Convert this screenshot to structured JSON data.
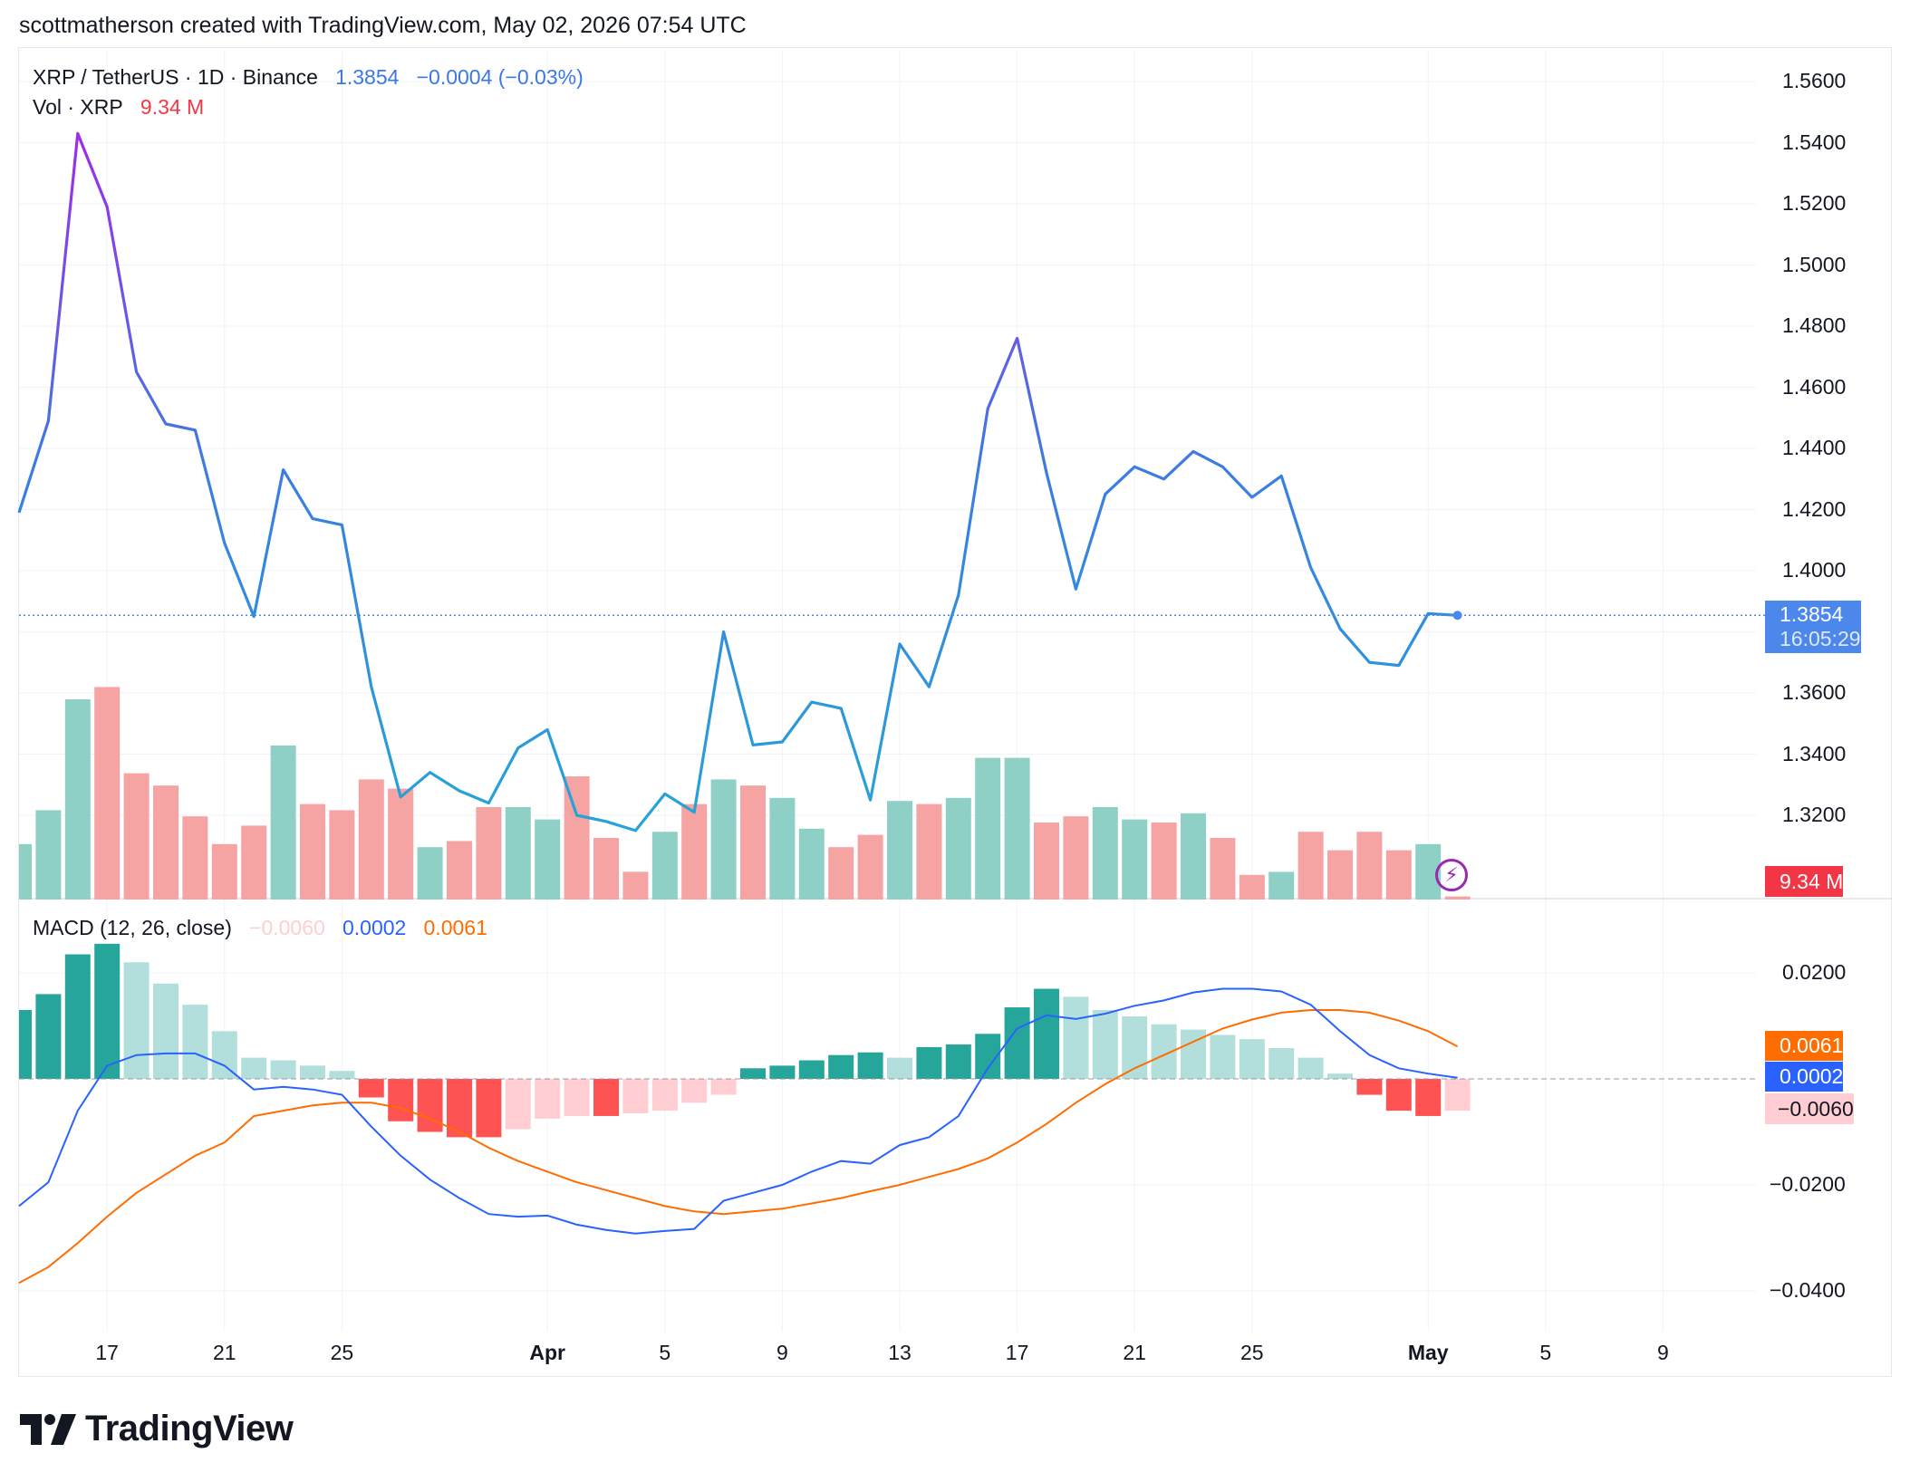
{
  "header": {
    "attribution": "scottmatherson created with TradingView.com, May 02, 2026 07:54 UTC"
  },
  "legend": {
    "symbol": "XRP / TetherUS · 1D · Binance",
    "last_price": "1.3854",
    "change": "−0.0004 (−0.03%)",
    "vol_label": "Vol · XRP",
    "vol_value": "9.34 M",
    "macd_label": "MACD (12, 26, close)",
    "macd_hist": "−0.0060",
    "macd_line": "0.0002",
    "macd_signal": "0.0061"
  },
  "badges": {
    "price": "1.3854",
    "countdown": "16:05:29",
    "volume": "9.34 M",
    "macd_signal": "0.0061",
    "macd_line": "0.0002",
    "macd_hist": "−0.0060"
  },
  "colors": {
    "up_volume": "#8fd0c6",
    "down_volume": "#f5a3a3",
    "macd_line": "#2962ff",
    "signal_line": "#ff6d00",
    "hist_up_strong": "#26a69a",
    "hist_up_weak": "#b2dfdb",
    "hist_down_strong": "#ff5252",
    "hist_down_weak": "#ffcdd2",
    "price_line_top": "#a22be8",
    "price_line_mid": "#3b7de0",
    "price_line_bottom": "#26a3d8"
  },
  "brand": "TradingView",
  "chart_data": {
    "type": "line",
    "price_axis": {
      "ticks": [
        "1.5600",
        "1.5400",
        "1.5200",
        "1.5000",
        "1.4800",
        "1.4600",
        "1.4400",
        "1.4200",
        "1.4000",
        "1.3600",
        "1.3400",
        "1.3200"
      ],
      "ylim": [
        1.3,
        1.57
      ]
    },
    "macd_axis": {
      "ticks": [
        "0.0200",
        "−0.0200",
        "−0.0400"
      ],
      "ylim": [
        -0.043,
        0.026
      ]
    },
    "x_ticks": [
      {
        "label": "17",
        "day": 3,
        "bold": false
      },
      {
        "label": "21",
        "day": 7,
        "bold": false
      },
      {
        "label": "25",
        "day": 11,
        "bold": false
      },
      {
        "label": "Apr",
        "day": 18,
        "bold": true
      },
      {
        "label": "5",
        "day": 22,
        "bold": false
      },
      {
        "label": "9",
        "day": 26,
        "bold": false
      },
      {
        "label": "13",
        "day": 30,
        "bold": false
      },
      {
        "label": "17",
        "day": 34,
        "bold": false
      },
      {
        "label": "21",
        "day": 38,
        "bold": false
      },
      {
        "label": "25",
        "day": 42,
        "bold": false
      },
      {
        "label": "May",
        "day": 48,
        "bold": true
      },
      {
        "label": "5",
        "day": 52,
        "bold": false
      },
      {
        "label": "9",
        "day": 56,
        "bold": false
      }
    ],
    "price": [
      1.419,
      1.449,
      1.543,
      1.519,
      1.465,
      1.448,
      1.446,
      1.409,
      1.385,
      1.433,
      1.417,
      1.415,
      1.362,
      1.326,
      1.334,
      1.328,
      1.324,
      1.342,
      1.348,
      1.32,
      1.318,
      1.315,
      1.327,
      1.321,
      1.38,
      1.343,
      1.344,
      1.357,
      1.355,
      1.325,
      1.376,
      1.362,
      1.392,
      1.453,
      1.476,
      1.432,
      1.394,
      1.425,
      1.434,
      1.43,
      1.439,
      1.434,
      1.424,
      1.431,
      1.401,
      1.381,
      1.37,
      1.369,
      1.386,
      1.3854
    ],
    "volume": {
      "values": [
        18,
        29,
        65,
        69,
        41,
        37,
        27,
        18,
        24,
        50,
        31,
        29,
        39,
        36,
        17,
        19,
        30,
        30,
        26,
        40,
        20,
        9,
        22,
        31,
        39,
        37,
        33,
        23,
        17,
        21,
        32,
        31,
        33,
        46,
        46,
        25,
        27,
        30,
        26,
        25,
        28,
        20,
        8,
        9,
        22,
        16,
        22,
        16,
        18,
        1
      ],
      "up": [
        true,
        true,
        true,
        false,
        false,
        false,
        false,
        false,
        false,
        true,
        false,
        false,
        false,
        false,
        true,
        false,
        false,
        true,
        true,
        false,
        false,
        false,
        true,
        false,
        true,
        false,
        true,
        true,
        false,
        false,
        true,
        false,
        true,
        true,
        true,
        false,
        false,
        true,
        true,
        false,
        true,
        false,
        false,
        true,
        false,
        false,
        false,
        false,
        true,
        false
      ]
    },
    "macd": {
      "line": [
        -0.024,
        -0.0195,
        -0.006,
        0.0025,
        0.0045,
        0.0048,
        0.0048,
        0.0025,
        -0.002,
        -0.0015,
        -0.002,
        -0.003,
        -0.009,
        -0.0145,
        -0.019,
        -0.0225,
        -0.0255,
        -0.026,
        -0.0258,
        -0.0275,
        -0.0285,
        -0.0292,
        -0.0287,
        -0.0283,
        -0.023,
        -0.0215,
        -0.02,
        -0.0175,
        -0.0155,
        -0.016,
        -0.0125,
        -0.011,
        -0.007,
        0.002,
        0.0095,
        0.012,
        0.0113,
        0.0123,
        0.0138,
        0.0148,
        0.0163,
        0.017,
        0.017,
        0.0165,
        0.014,
        0.009,
        0.0045,
        0.002,
        0.001,
        0.0002
      ],
      "signal": [
        -0.0385,
        -0.0355,
        -0.031,
        -0.026,
        -0.0215,
        -0.018,
        -0.0145,
        -0.012,
        -0.007,
        -0.006,
        -0.005,
        -0.0045,
        -0.0045,
        -0.0055,
        -0.0075,
        -0.01,
        -0.013,
        -0.0155,
        -0.0175,
        -0.0195,
        -0.021,
        -0.0225,
        -0.024,
        -0.025,
        -0.0255,
        -0.025,
        -0.0245,
        -0.0235,
        -0.0225,
        -0.0212,
        -0.02,
        -0.0185,
        -0.017,
        -0.015,
        -0.012,
        -0.0085,
        -0.0045,
        -0.001,
        0.002,
        0.0045,
        0.007,
        0.0095,
        0.0112,
        0.0125,
        0.013,
        0.013,
        0.0125,
        0.011,
        0.009,
        0.0061
      ],
      "histogram": [
        0.013,
        0.016,
        0.0235,
        0.0255,
        0.022,
        0.018,
        0.014,
        0.009,
        0.004,
        0.0035,
        0.0025,
        0.0015,
        -0.0035,
        -0.008,
        -0.01,
        -0.011,
        -0.011,
        -0.0095,
        -0.0075,
        -0.007,
        -0.007,
        -0.0065,
        -0.006,
        -0.0045,
        -0.003,
        0.002,
        0.0025,
        0.0035,
        0.0045,
        0.005,
        0.004,
        0.006,
        0.0065,
        0.0085,
        0.0135,
        0.017,
        0.0155,
        0.013,
        0.0118,
        0.0103,
        0.0093,
        0.0083,
        0.0075,
        0.0058,
        0.004,
        0.001,
        -0.003,
        -0.006,
        -0.007,
        -0.006
      ]
    }
  }
}
